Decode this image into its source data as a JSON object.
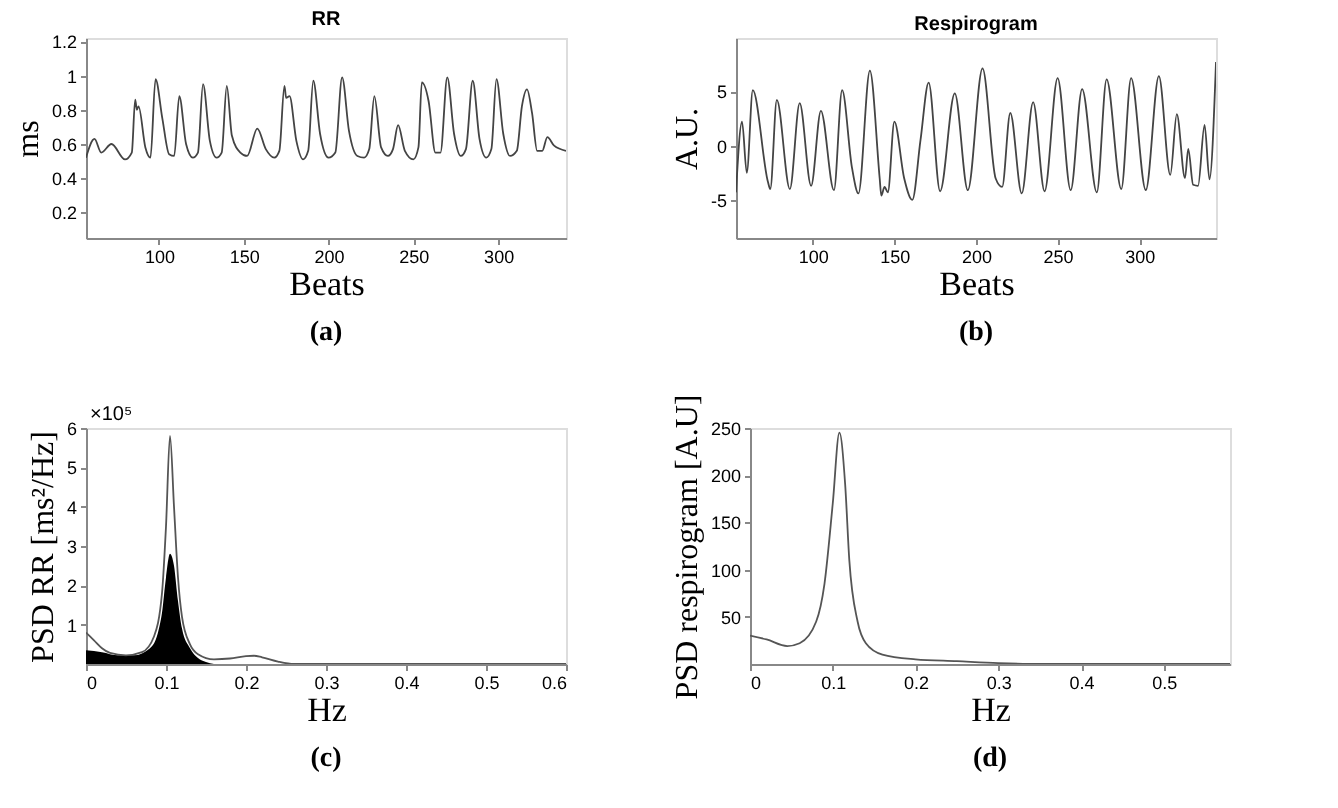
{
  "chart_data": [
    {
      "type": "line",
      "title": "RR",
      "xlabel": "Beats",
      "ylabel": "ms",
      "xlim": [
        57,
        340
      ],
      "xticks": [
        100,
        150,
        200,
        250,
        300
      ],
      "ylim": [
        0.05,
        1.22
      ],
      "yticks": [
        0.2,
        0.4,
        0.6,
        0.8,
        1,
        1.2
      ],
      "grid": false,
      "line_style": "solid",
      "annotations": [
        "(a)"
      ],
      "series": [
        {
          "type": "line",
          "color": "#444444",
          "x": [
            57,
            62,
            66,
            72,
            80,
            84,
            86,
            87,
            88,
            92,
            95,
            98,
            102,
            106,
            109,
            112,
            116,
            120,
            123,
            126,
            130,
            134,
            137,
            140,
            143,
            148,
            152,
            158,
            163,
            168,
            171,
            174,
            175,
            177,
            181,
            185,
            188,
            191,
            195,
            200,
            204,
            208,
            212,
            217,
            221,
            224,
            227,
            231,
            235,
            238,
            241,
            245,
            250,
            253,
            255,
            259,
            263,
            266,
            270,
            274,
            278,
            281,
            285,
            289,
            293,
            296,
            299,
            303,
            307,
            311,
            314,
            317,
            320,
            323,
            326,
            329,
            333,
            340
          ],
          "values": [
            0.52,
            0.63,
            0.55,
            0.6,
            0.51,
            0.55,
            0.86,
            0.8,
            0.82,
            0.58,
            0.52,
            0.98,
            0.75,
            0.54,
            0.53,
            0.88,
            0.6,
            0.52,
            0.55,
            0.95,
            0.62,
            0.52,
            0.55,
            0.94,
            0.65,
            0.55,
            0.53,
            0.69,
            0.57,
            0.52,
            0.56,
            0.94,
            0.87,
            0.88,
            0.62,
            0.51,
            0.56,
            0.97,
            0.66,
            0.52,
            0.55,
            0.99,
            0.68,
            0.53,
            0.52,
            0.57,
            0.88,
            0.58,
            0.53,
            0.57,
            0.71,
            0.56,
            0.51,
            0.58,
            0.96,
            0.85,
            0.55,
            0.55,
            0.99,
            0.66,
            0.53,
            0.57,
            0.97,
            0.63,
            0.52,
            0.57,
            0.98,
            0.66,
            0.53,
            0.56,
            0.82,
            0.92,
            0.78,
            0.56,
            0.56,
            0.64,
            0.59,
            0.56
          ]
        }
      ]
    },
    {
      "type": "line",
      "title": "Respirogram",
      "xlabel": "Beats",
      "ylabel": "A.U.",
      "xlim": [
        53,
        347
      ],
      "xticks": [
        100,
        150,
        200,
        250,
        300
      ],
      "ylim": [
        -8.5,
        9.9
      ],
      "yticks": [
        -5,
        0,
        5
      ],
      "grid": false,
      "line_style": "solid",
      "annotations": [
        "(b)"
      ],
      "series": [
        {
          "type": "line",
          "color": "#444444",
          "x": [
            53,
            56.7,
            59.6,
            63.3,
            72.5,
            74,
            78,
            86,
            92,
            99,
            105,
            113,
            118,
            124,
            128,
            135,
            141,
            142,
            144,
            146,
            150,
            156,
            161,
            166,
            171,
            178,
            187,
            195,
            204,
            212,
            216,
            221,
            228,
            235,
            242,
            250,
            258,
            265,
            274,
            280,
            289,
            295,
            304,
            312,
            319,
            323,
            328,
            330,
            333,
            336,
            340,
            343,
            347
          ],
          "values": [
            -4.3,
            2.2,
            -2.5,
            5.1,
            -3.3,
            -4,
            4.2,
            -4,
            3.9,
            -3.7,
            3.2,
            -4.1,
            5.1,
            -2,
            -4.4,
            6.9,
            -3,
            -4.6,
            -3.8,
            -4.3,
            2.2,
            -3,
            -5,
            0.5,
            5.8,
            -4.2,
            4.8,
            -4.1,
            7.1,
            -3,
            -3.8,
            3,
            -4.4,
            4,
            -4.2,
            6.2,
            -4.1,
            5.2,
            -4.3,
            6.1,
            -4,
            6.2,
            -4.1,
            6.4,
            -2.7,
            2.9,
            -3,
            -0.3,
            -3.6,
            -3.7,
            1.9,
            -3.1,
            7.7
          ]
        }
      ]
    },
    {
      "type": "line",
      "xlabel": "Hz",
      "ylabel": "PSD RR [ms²/Hz]",
      "xlim": [
        0,
        0.6
      ],
      "xticks": [
        0,
        0.1,
        0.2,
        0.3,
        0.4,
        0.5,
        0.6
      ],
      "ylim": [
        0,
        6
      ],
      "yticks": [
        1,
        2,
        3,
        4,
        5,
        6
      ],
      "grid": false,
      "line_style": "solid",
      "annotations": [
        "×10⁵",
        "(c)"
      ],
      "series": [
        {
          "type": "area",
          "color": "#000000",
          "x": [
            0,
            0.02,
            0.04,
            0.06,
            0.08,
            0.09,
            0.095,
            0.1,
            0.105,
            0.11,
            0.115,
            0.12,
            0.13,
            0.14,
            0.15,
            0.16
          ],
          "values": [
            0.35,
            0.3,
            0.22,
            0.22,
            0.4,
            0.8,
            1.3,
            2.2,
            2.8,
            2.5,
            1.6,
            0.9,
            0.4,
            0.15,
            0.05,
            0
          ]
        },
        {
          "type": "line",
          "color": "#555555",
          "x": [
            0,
            0.01,
            0.02,
            0.03,
            0.05,
            0.07,
            0.085,
            0.095,
            0.1,
            0.105,
            0.11,
            0.115,
            0.12,
            0.13,
            0.14,
            0.16,
            0.18,
            0.2,
            0.21,
            0.22,
            0.24,
            0.26,
            0.6
          ],
          "values": [
            0.8,
            0.6,
            0.4,
            0.28,
            0.22,
            0.3,
            0.7,
            1.8,
            3.5,
            5.8,
            4,
            2.2,
            1.2,
            0.5,
            0.25,
            0.12,
            0.14,
            0.2,
            0.21,
            0.17,
            0.06,
            0,
            0
          ]
        }
      ]
    },
    {
      "type": "line",
      "xlabel": "Hz",
      "ylabel": "PSD respirogram [A.U]",
      "xlim": [
        0,
        0.58
      ],
      "xticks": [
        0,
        0.1,
        0.2,
        0.3,
        0.4,
        0.5
      ],
      "ylim": [
        0,
        250
      ],
      "yticks": [
        50,
        100,
        150,
        200,
        250
      ],
      "grid": false,
      "line_style": "solid",
      "annotations": [
        "(d)"
      ],
      "series": [
        {
          "color": "#555555",
          "x": [
            0,
            0.02,
            0.045,
            0.06,
            0.08,
            0.09,
            0.1,
            0.108,
            0.115,
            0.12,
            0.13,
            0.14,
            0.16,
            0.2,
            0.25,
            0.3,
            0.35,
            0.58
          ],
          "values": [
            30,
            26,
            19,
            22,
            45,
            85,
            170,
            245,
            190,
            110,
            45,
            22,
            10,
            5,
            3,
            1,
            0,
            0
          ]
        }
      ]
    }
  ]
}
